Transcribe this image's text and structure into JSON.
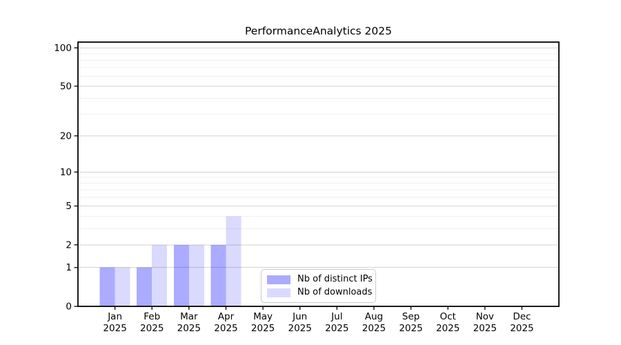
{
  "title": "PerformanceAnalytics 2025",
  "chart_data": {
    "type": "bar",
    "title": "PerformanceAnalytics 2025",
    "xlabel": "",
    "ylabel": "",
    "categories": [
      "Jan 2025",
      "Feb 2025",
      "Mar 2025",
      "Apr 2025",
      "May 2025",
      "Jun 2025",
      "Jul 2025",
      "Aug 2025",
      "Sep 2025",
      "Oct 2025",
      "Nov 2025",
      "Dec 2025"
    ],
    "series": [
      {
        "name": "Nb of distinct IPs",
        "color": "rgba(0,0,255,0.33)",
        "values": [
          1,
          1,
          2,
          2,
          0,
          0,
          0,
          0,
          0,
          0,
          0,
          0
        ]
      },
      {
        "name": "Nb of downloads",
        "color": "rgba(0,0,255,0.145)",
        "values": [
          1,
          2,
          2,
          4,
          0,
          0,
          0,
          0,
          0,
          0,
          0,
          0
        ]
      }
    ],
    "y_axis": {
      "scale": "log1p",
      "tick_values": [
        0,
        1,
        2,
        5,
        10,
        20,
        50,
        100
      ],
      "minor_tick_values": [
        3,
        4,
        6,
        7,
        8,
        9,
        30,
        40,
        60,
        70,
        80,
        90
      ],
      "max": 111
    },
    "grid": {
      "major_color": "#d2d2d2",
      "minor_color": "#efefef"
    },
    "legend_position": "lower center",
    "axis_color": "#000000"
  }
}
